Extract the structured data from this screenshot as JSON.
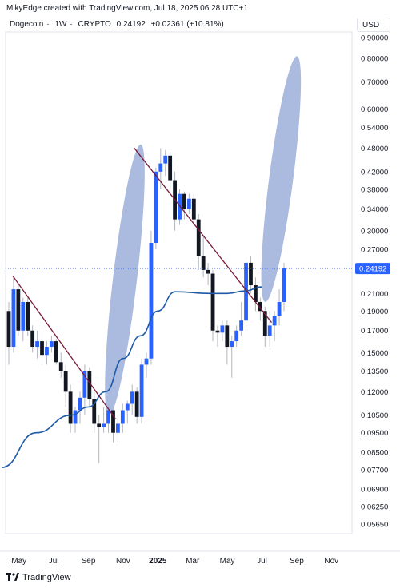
{
  "header": {
    "author_line": "MikyEdge created with TradingView.com, Jul 18, 2025 06:28 UTC+1",
    "symbol": "Dogecoin",
    "interval": "1W",
    "exchange": "CRYPTO",
    "price": "0.24192",
    "change": "+0.02361 (+10.81%)",
    "currency": "USD"
  },
  "footer": {
    "brand": "TradingView",
    "logo": "tradingview-logo-icon"
  },
  "colors": {
    "up": "#2962ff",
    "down": "#131722",
    "ma": "#1e5aa8",
    "trend": "#7a1a3a",
    "ellipse": "#8fa3d4",
    "last_price": "#2962ff"
  },
  "chart_data": {
    "type": "candlestick",
    "title": "Dogecoin · 1W · CRYPTO",
    "y_scale": "log",
    "ylim": [
      0.0535,
      0.93
    ],
    "x_ticks": [
      "May",
      "Jul",
      "Sep",
      "Nov",
      "2025",
      "Mar",
      "May",
      "Jul",
      "Sep",
      "Nov"
    ],
    "y_ticks": [
      "0.90000",
      "0.80000",
      "0.70000",
      "0.60000",
      "0.54000",
      "0.48000",
      "0.42000",
      "0.38000",
      "0.34000",
      "0.30000",
      "0.27000",
      "0.21000",
      "0.19000",
      "0.17000",
      "0.15000",
      "0.13500",
      "0.12000",
      "0.10500",
      "0.09500",
      "0.08500",
      "0.07700",
      "0.06900",
      "0.06250",
      "0.05650"
    ],
    "last_price_label": "0.24192",
    "last_price": 0.24192,
    "candles_ohlc": [
      [
        0.19,
        0.2,
        0.14,
        0.155
      ],
      [
        0.155,
        0.23,
        0.15,
        0.215
      ],
      [
        0.215,
        0.22,
        0.165,
        0.17
      ],
      [
        0.17,
        0.205,
        0.16,
        0.2
      ],
      [
        0.2,
        0.205,
        0.165,
        0.17
      ],
      [
        0.17,
        0.175,
        0.15,
        0.155
      ],
      [
        0.155,
        0.17,
        0.145,
        0.16
      ],
      [
        0.16,
        0.17,
        0.14,
        0.148
      ],
      [
        0.148,
        0.16,
        0.14,
        0.155
      ],
      [
        0.155,
        0.165,
        0.15,
        0.16
      ],
      [
        0.16,
        0.162,
        0.14,
        0.142
      ],
      [
        0.142,
        0.15,
        0.13,
        0.135
      ],
      [
        0.135,
        0.14,
        0.11,
        0.12
      ],
      [
        0.12,
        0.125,
        0.095,
        0.1
      ],
      [
        0.1,
        0.11,
        0.095,
        0.108
      ],
      [
        0.108,
        0.12,
        0.1,
        0.116
      ],
      [
        0.116,
        0.14,
        0.105,
        0.135
      ],
      [
        0.135,
        0.138,
        0.11,
        0.115
      ],
      [
        0.115,
        0.12,
        0.095,
        0.1
      ],
      [
        0.1,
        0.105,
        0.08,
        0.098
      ],
      [
        0.098,
        0.11,
        0.095,
        0.1
      ],
      [
        0.1,
        0.112,
        0.095,
        0.108
      ],
      [
        0.108,
        0.11,
        0.09,
        0.095
      ],
      [
        0.095,
        0.105,
        0.09,
        0.1
      ],
      [
        0.1,
        0.112,
        0.095,
        0.108
      ],
      [
        0.108,
        0.114,
        0.1,
        0.112
      ],
      [
        0.112,
        0.125,
        0.105,
        0.12
      ],
      [
        0.12,
        0.123,
        0.1,
        0.104
      ],
      [
        0.104,
        0.145,
        0.1,
        0.14
      ],
      [
        0.14,
        0.15,
        0.13,
        0.145
      ],
      [
        0.145,
        0.3,
        0.14,
        0.28
      ],
      [
        0.28,
        0.43,
        0.27,
        0.42
      ],
      [
        0.42,
        0.48,
        0.38,
        0.44
      ],
      [
        0.44,
        0.475,
        0.41,
        0.46
      ],
      [
        0.46,
        0.47,
        0.38,
        0.4
      ],
      [
        0.4,
        0.42,
        0.3,
        0.32
      ],
      [
        0.32,
        0.38,
        0.31,
        0.37
      ],
      [
        0.37,
        0.375,
        0.32,
        0.34
      ],
      [
        0.34,
        0.37,
        0.33,
        0.36
      ],
      [
        0.36,
        0.37,
        0.31,
        0.32
      ],
      [
        0.32,
        0.33,
        0.24,
        0.26
      ],
      [
        0.26,
        0.29,
        0.23,
        0.24
      ],
      [
        0.24,
        0.25,
        0.22,
        0.235
      ],
      [
        0.235,
        0.24,
        0.16,
        0.17
      ],
      [
        0.17,
        0.175,
        0.155,
        0.168
      ],
      [
        0.168,
        0.18,
        0.16,
        0.175
      ],
      [
        0.175,
        0.18,
        0.14,
        0.155
      ],
      [
        0.155,
        0.165,
        0.13,
        0.16
      ],
      [
        0.16,
        0.175,
        0.155,
        0.17
      ],
      [
        0.17,
        0.2,
        0.165,
        0.18
      ],
      [
        0.18,
        0.26,
        0.17,
        0.25
      ],
      [
        0.25,
        0.26,
        0.21,
        0.22
      ],
      [
        0.22,
        0.23,
        0.19,
        0.2
      ],
      [
        0.2,
        0.205,
        0.18,
        0.19
      ],
      [
        0.19,
        0.195,
        0.155,
        0.165
      ],
      [
        0.165,
        0.19,
        0.155,
        0.175
      ],
      [
        0.175,
        0.19,
        0.16,
        0.185
      ],
      [
        0.185,
        0.215,
        0.175,
        0.2
      ],
      [
        0.2,
        0.25,
        0.19,
        0.242
      ]
    ],
    "series": [
      {
        "type": "moving_average",
        "x": [
          "Apr 2024",
          "Jun 2024",
          "Aug 2024",
          "Sep 2024",
          "Oct 2024",
          "Nov 2024",
          "Dec 2024",
          "Jan 2025",
          "Feb 2025",
          "Apr 2025",
          "May 2025",
          "Jun 2025",
          "Jul 2025"
        ],
        "values": [
          0.078,
          0.095,
          0.105,
          0.11,
          0.12,
          0.145,
          0.165,
          0.19,
          0.212,
          0.21,
          0.21,
          0.213,
          0.218
        ]
      }
    ],
    "trendlines": [
      {
        "from": [
          "Apr 2024",
          0.232
        ],
        "to": [
          "Oct 2024",
          0.103
        ]
      },
      {
        "from": [
          "Nov 2024",
          0.48
        ],
        "to": [
          "Jul 2025",
          0.178
        ]
      }
    ],
    "ellipses": [
      {
        "from": [
          "Oct 2024",
          0.105
        ],
        "to": [
          "Nov 2024",
          0.49
        ]
      },
      {
        "from": [
          "Jul 2025",
          0.2
        ],
        "to": [
          "Aug 2025",
          0.81
        ]
      }
    ]
  }
}
